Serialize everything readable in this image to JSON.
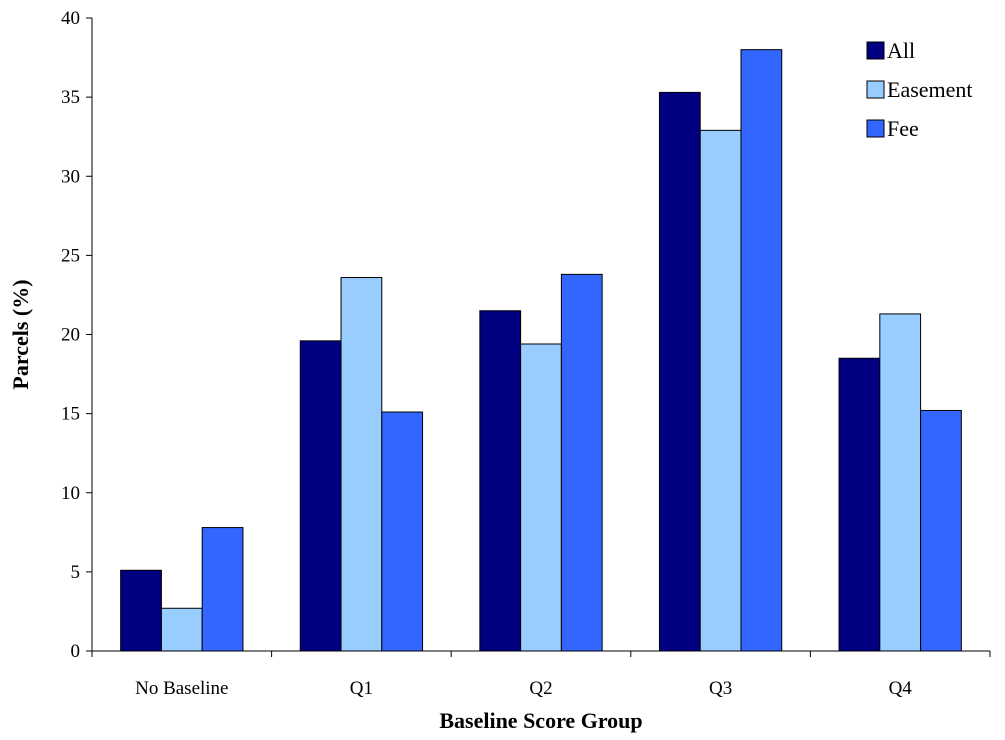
{
  "chart_data": {
    "type": "bar",
    "title": "",
    "xlabel": "Baseline Score Group",
    "ylabel": "Parcels (%)",
    "ylim": [
      0,
      40
    ],
    "yticks": [
      0,
      5,
      10,
      15,
      20,
      25,
      30,
      35,
      40
    ],
    "categories": [
      "No Baseline",
      "Q1",
      "Q2",
      "Q3",
      "Q4"
    ],
    "series": [
      {
        "name": "All",
        "color": "#000080",
        "values": [
          5.1,
          19.6,
          21.5,
          35.3,
          18.5
        ]
      },
      {
        "name": "Easement",
        "color": "#99ccff",
        "values": [
          2.7,
          23.6,
          19.4,
          32.9,
          21.3
        ]
      },
      {
        "name": "Fee",
        "color": "#3366ff",
        "values": [
          7.8,
          15.1,
          23.8,
          38.0,
          15.2
        ]
      }
    ],
    "legend": "top-right",
    "grid": false
  }
}
